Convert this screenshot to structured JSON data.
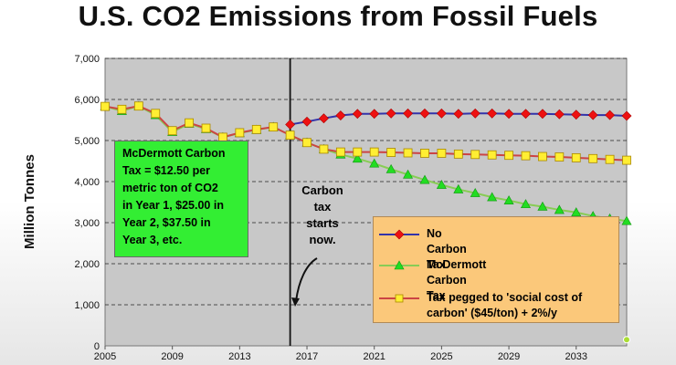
{
  "chart_data": {
    "type": "line",
    "title": "U.S. CO2 Emissions from Fossil Fuels",
    "ylabel": "Million Tonnes",
    "xlabel": "",
    "xlim": [
      2005,
      2036
    ],
    "ylim": [
      0,
      7000
    ],
    "x_tick_labels": [
      "2005",
      "2009",
      "2013",
      "2017",
      "2021",
      "2025",
      "2029",
      "2033"
    ],
    "y_tick_labels": [
      "0",
      "1,000",
      "2,000",
      "3,000",
      "4,000",
      "5,000",
      "6,000",
      "7,000"
    ],
    "grid": true,
    "legend_position": "bottom-right",
    "series": [
      {
        "name": "No Carbon Tax",
        "color": "#3333aa",
        "marker_color": "#ee1111",
        "marker": "diamond",
        "x": [
          2016,
          2017,
          2018,
          2019,
          2020,
          2021,
          2022,
          2023,
          2024,
          2025,
          2026,
          2027,
          2028,
          2029,
          2030,
          2031,
          2032,
          2033,
          2034,
          2035,
          2036
        ],
        "values": [
          5390,
          5460,
          5540,
          5610,
          5650,
          5650,
          5660,
          5660,
          5660,
          5660,
          5650,
          5660,
          5660,
          5650,
          5650,
          5650,
          5640,
          5630,
          5620,
          5620,
          5600
        ]
      },
      {
        "name": "McDermott Carbon Tax",
        "color": "#88cc55",
        "marker_color": "#22dd22",
        "marker": "triangle",
        "x": [
          2005,
          2006,
          2007,
          2008,
          2009,
          2010,
          2011,
          2012,
          2013,
          2014,
          2015,
          2016,
          2017,
          2018,
          2019,
          2020,
          2021,
          2022,
          2023,
          2024,
          2025,
          2026,
          2027,
          2028,
          2029,
          2030,
          2031,
          2032,
          2033,
          2034,
          2035,
          2036
        ],
        "values": [
          5830,
          5720,
          5840,
          5620,
          5210,
          5410,
          5280,
          5080,
          5180,
          5260,
          5330,
          5130,
          4950,
          4790,
          4660,
          4560,
          4440,
          4300,
          4170,
          4040,
          3920,
          3810,
          3720,
          3620,
          3540,
          3450,
          3390,
          3310,
          3250,
          3160,
          3100,
          3040
        ]
      },
      {
        "name": "Tax pegged to 'social cost of carbon' ($45/ton) + 2%/y",
        "color": "#cc4444",
        "marker_color": "#ffee33",
        "marker": "square",
        "x": [
          2005,
          2006,
          2007,
          2008,
          2009,
          2010,
          2011,
          2012,
          2013,
          2014,
          2015,
          2016,
          2017,
          2018,
          2019,
          2020,
          2021,
          2022,
          2023,
          2024,
          2025,
          2026,
          2027,
          2028,
          2029,
          2030,
          2031,
          2032,
          2033,
          2034,
          2035,
          2036
        ],
        "values": [
          5830,
          5760,
          5840,
          5660,
          5240,
          5430,
          5300,
          5080,
          5190,
          5270,
          5330,
          5130,
          4950,
          4790,
          4720,
          4720,
          4720,
          4710,
          4700,
          4690,
          4690,
          4670,
          4660,
          4650,
          4640,
          4630,
          4610,
          4600,
          4580,
          4560,
          4540,
          4520
        ]
      }
    ],
    "extra_points": [
      {
        "x": 2036,
        "value": 150,
        "color": "#aadd33"
      }
    ],
    "annotations": {
      "policy_box": [
        "McDermott Carbon",
        "Tax = $12.50 per",
        "metric ton of CO2",
        "in Year 1, $25.00 in",
        "Year 2, $37.50 in",
        "Year 3, etc."
      ],
      "start_note": [
        "Carbon",
        "tax",
        "starts",
        "now."
      ],
      "start_year": 2016
    }
  }
}
